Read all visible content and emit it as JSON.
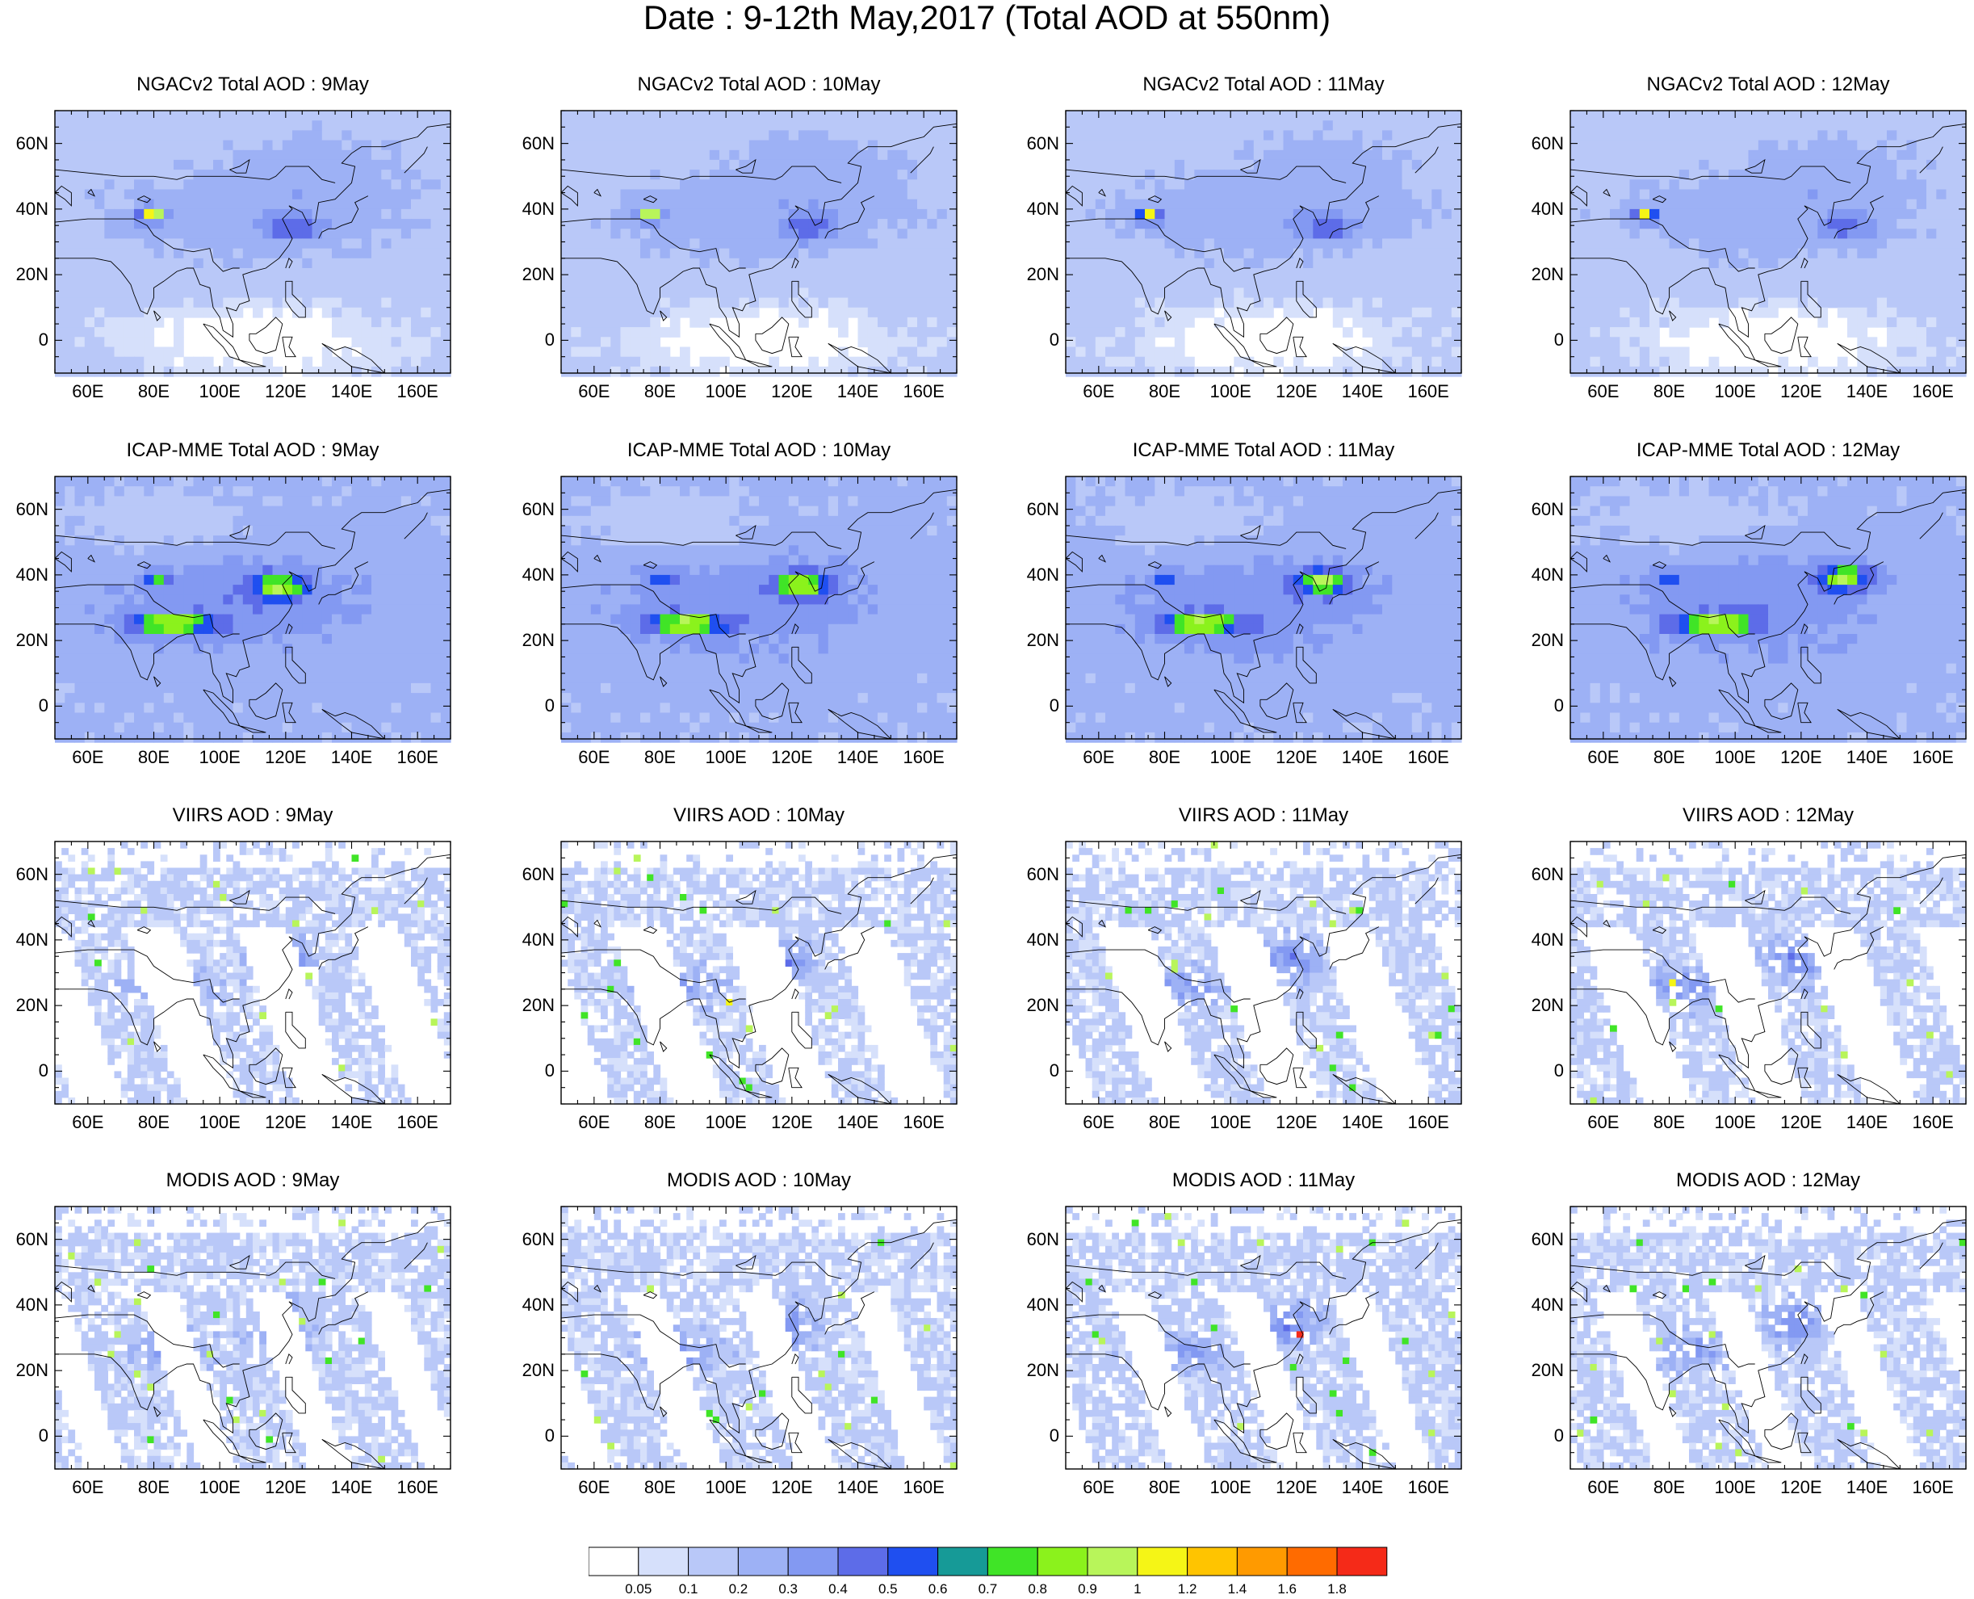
{
  "title": "Date : 9-12th May,2017 (Total AOD at 550nm)",
  "map": {
    "lon_range": [
      50,
      170
    ],
    "lat_range": [
      -10,
      70
    ],
    "lon_ticks": [
      "60E",
      "80E",
      "100E",
      "120E",
      "140E",
      "160E"
    ],
    "lat_ticks": [
      "60N",
      "40N",
      "20N",
      "0"
    ]
  },
  "rows": [
    {
      "source": "NGACv2",
      "field": "model",
      "panels": [
        "NGACv2 Total AOD : 9May",
        "NGACv2 Total AOD : 10May",
        "NGACv2 Total AOD : 11May",
        "NGACv2 Total AOD : 12May"
      ]
    },
    {
      "source": "ICAP-MME",
      "field": "model",
      "panels": [
        "ICAP-MME Total AOD : 9May",
        "ICAP-MME Total AOD : 10May",
        "ICAP-MME Total AOD : 11May",
        "ICAP-MME Total AOD : 12May"
      ]
    },
    {
      "source": "VIIRS",
      "field": "satellite",
      "panels": [
        "VIIRS AOD : 9May",
        "VIIRS AOD : 10May",
        "VIIRS AOD : 11May",
        "VIIRS AOD : 12May"
      ]
    },
    {
      "source": "MODIS",
      "field": "satellite",
      "panels": [
        "MODIS AOD : 9May",
        "MODIS AOD : 10May",
        "MODIS AOD : 11May",
        "MODIS AOD : 12May"
      ]
    }
  ],
  "colorbar": {
    "labels": [
      "0.05",
      "0.1",
      "0.2",
      "0.3",
      "0.4",
      "0.5",
      "0.6",
      "0.7",
      "0.8",
      "0.9",
      "1",
      "1.2",
      "1.4",
      "1.6",
      "1.8"
    ],
    "colors": [
      "#ffffff",
      "#d6e0fb",
      "#b9c8f8",
      "#9db1f5",
      "#8399f2",
      "#5d6ce8",
      "#1f4ff0",
      "#169a97",
      "#40e427",
      "#8bf21c",
      "#b8f55a",
      "#f5f516",
      "#ffc400",
      "#ff9a00",
      "#ff6b00",
      "#f52a18"
    ]
  }
}
